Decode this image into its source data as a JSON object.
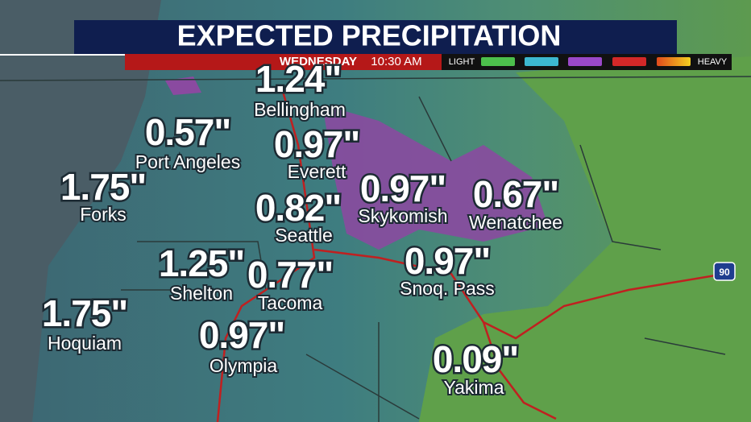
{
  "header": {
    "title": "EXPECTED PRECIPITATION",
    "day": "WEDNESDAY",
    "time": "10:30 AM"
  },
  "legend": {
    "light": "LIGHT",
    "heavy": "HEAVY"
  },
  "cities": [
    {
      "name": "Bellingham",
      "amount": "1.24\""
    },
    {
      "name": "Port Angeles",
      "amount": "0.57\""
    },
    {
      "name": "Everett",
      "amount": "0.97\""
    },
    {
      "name": "Forks",
      "amount": "1.75\""
    },
    {
      "name": "Seattle",
      "amount": "0.82\""
    },
    {
      "name": "Skykomish",
      "amount": "0.97\""
    },
    {
      "name": "Wenatchee",
      "amount": "0.67\""
    },
    {
      "name": "Shelton",
      "amount": "1.25\""
    },
    {
      "name": "Tacoma",
      "amount": "0.77\""
    },
    {
      "name": "Snoq. Pass",
      "amount": "0.97\""
    },
    {
      "name": "Hoquiam",
      "amount": "1.75\""
    },
    {
      "name": "Olympia",
      "amount": "0.97\""
    },
    {
      "name": "Yakima",
      "amount": "0.09\""
    }
  ],
  "highway": "90"
}
